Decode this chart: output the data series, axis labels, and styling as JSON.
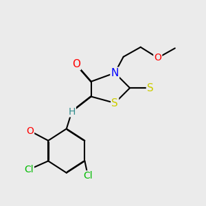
{
  "bg_color": "#ebebeb",
  "bond_color": "#000000",
  "bond_width": 1.5,
  "atom_colors": {
    "O": "#ff0000",
    "N": "#0000ff",
    "S_ring": "#cccc00",
    "S_exo": "#cccc00",
    "Cl": "#00bb00",
    "H": "#2e8b8b",
    "C": "#000000"
  },
  "font_size": 9
}
